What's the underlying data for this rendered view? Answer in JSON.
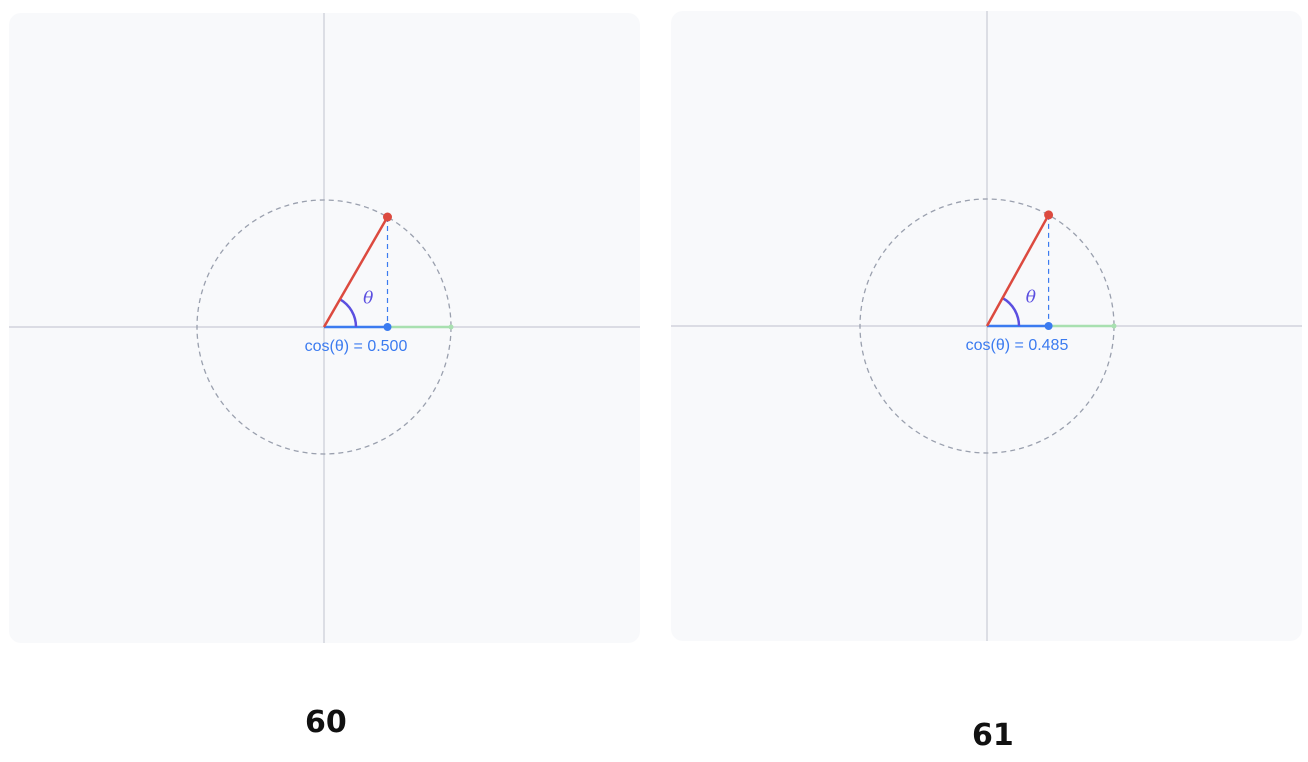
{
  "colors": {
    "panel_bg": "#f8f9fb",
    "axes": "#c9ccd6",
    "circle": "#9aa0ae",
    "radius_line": "#dc4a3f",
    "cosine_segment": "#3b7bf0",
    "remaining_segment": "#a8e0b0",
    "angle_arc": "#5b4fe0",
    "dashed_drop": "#3b7bf0",
    "label_text": "#3b7bf0",
    "theta_text": "#5b4fe0"
  },
  "frames": [
    {
      "frame_number": "60",
      "theta_label": "θ",
      "cos_value": 0.5,
      "cos_label": "cos(θ) = 0.500"
    },
    {
      "frame_number": "61",
      "theta_label": "θ",
      "cos_value": 0.485,
      "cos_label": "cos(θ) = 0.485"
    }
  ]
}
